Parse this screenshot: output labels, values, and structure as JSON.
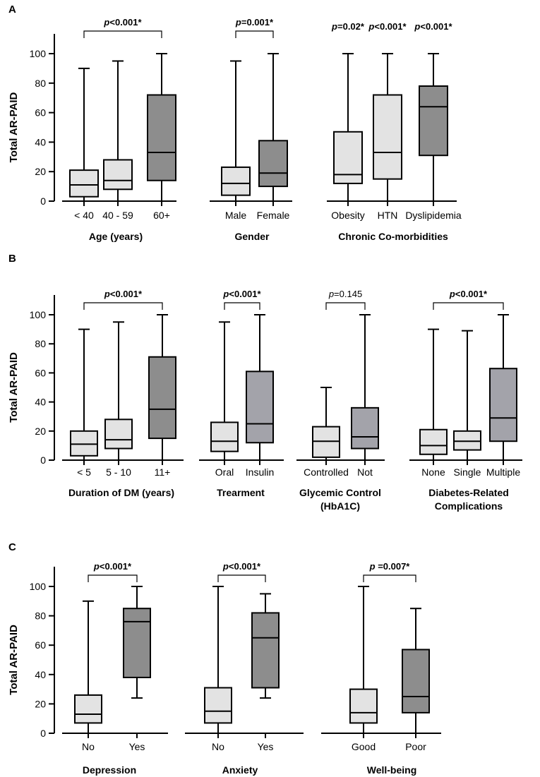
{
  "chart_data": [
    {
      "type": "box",
      "panel": "A",
      "ylabel": "Total AR-PAID",
      "ylim": [
        0,
        100
      ],
      "yticks": [
        "0",
        "20",
        "40",
        "60",
        "80",
        "100"
      ],
      "groups": [
        {
          "label": "Age (years)",
          "pvalue": {
            "prefix": "p",
            "text": "<0.001*",
            "bold": true,
            "bracket": true,
            "from": 0,
            "to": 2
          }
        },
        {
          "label": "Gender",
          "pvalue": {
            "prefix": "p",
            "text": "=0.001*",
            "bold": true,
            "bracket": true,
            "from": 3,
            "to": 4
          }
        },
        {
          "label": "Chronic Co-morbidities"
        }
      ],
      "boxes": [
        {
          "label": "< 40",
          "group": 0,
          "min": 0,
          "q1": 3,
          "median": 11,
          "q3": 21,
          "max": 90,
          "fill": "light"
        },
        {
          "label": "40 - 59",
          "group": 0,
          "min": 0,
          "q1": 8,
          "median": 14,
          "q3": 28,
          "max": 95,
          "fill": "light"
        },
        {
          "label": "60+",
          "group": 0,
          "min": 0,
          "q1": 14,
          "median": 33,
          "q3": 72,
          "max": 100,
          "fill": "dark"
        },
        {
          "label": "Male",
          "group": 1,
          "min": 0,
          "q1": 4,
          "median": 12,
          "q3": 23,
          "max": 95,
          "fill": "light"
        },
        {
          "label": "Female",
          "group": 1,
          "min": 0,
          "q1": 10,
          "median": 19,
          "q3": 41,
          "max": 100,
          "fill": "dark"
        },
        {
          "label": "Obesity",
          "group": 2,
          "min": 0,
          "q1": 12,
          "median": 18,
          "q3": 47,
          "max": 100,
          "fill": "light",
          "pvalue": {
            "prefix": "p",
            "text": "=0.02*",
            "bold": true
          }
        },
        {
          "label": "HTN",
          "group": 2,
          "min": 0,
          "q1": 15,
          "median": 33,
          "q3": 72,
          "max": 100,
          "fill": "light",
          "pvalue": {
            "prefix": "p",
            "text": "<0.001*",
            "bold": true
          }
        },
        {
          "label": "Dyslipidemia",
          "group": 2,
          "min": 0,
          "q1": 31,
          "median": 64,
          "q3": 78,
          "max": 100,
          "fill": "dark",
          "pvalue": {
            "prefix": "p",
            "text": "<0.001*",
            "bold": true
          }
        }
      ]
    },
    {
      "type": "box",
      "panel": "B",
      "ylabel": "Total AR-PAID",
      "ylim": [
        0,
        100
      ],
      "yticks": [
        "0",
        "20",
        "40",
        "60",
        "80",
        "100"
      ],
      "groups": [
        {
          "label": "Duration of DM (years)",
          "pvalue": {
            "prefix": "p",
            "text": "<0.001*",
            "bold": true,
            "bracket": true,
            "from": 0,
            "to": 2
          }
        },
        {
          "label": "Trearment",
          "pvalue": {
            "prefix": "p",
            "text": "<0.001*",
            "bold": true,
            "bracket": true,
            "from": 3,
            "to": 4
          }
        },
        {
          "label": "Glycemic Control",
          "label2": "(HbA1C)",
          "pvalue": {
            "prefix": "p",
            "text": "=0.145",
            "bold": false,
            "bracket": true,
            "from": 5,
            "to": 6
          }
        },
        {
          "label": "Diabetes-Related",
          "label2": "Complications",
          "pvalue": {
            "prefix": "p",
            "text": "<0.001*",
            "bold": true,
            "bracket": true,
            "from": 7,
            "to": 9
          }
        }
      ],
      "boxes": [
        {
          "label": "< 5",
          "group": 0,
          "min": 0,
          "q1": 3,
          "median": 11,
          "q3": 20,
          "max": 90,
          "fill": "light"
        },
        {
          "label": "5 - 10",
          "group": 0,
          "min": 0,
          "q1": 8,
          "median": 14,
          "q3": 28,
          "max": 95,
          "fill": "light"
        },
        {
          "label": "11+",
          "group": 0,
          "min": 0,
          "q1": 15,
          "median": 35,
          "q3": 71,
          "max": 100,
          "fill": "dark"
        },
        {
          "label": "Oral",
          "group": 1,
          "min": 0,
          "q1": 6,
          "median": 13,
          "q3": 26,
          "max": 95,
          "fill": "light"
        },
        {
          "label": "Insulin",
          "group": 1,
          "min": 0,
          "q1": 12,
          "median": 25,
          "q3": 61,
          "max": 100,
          "fill": "mid"
        },
        {
          "label": "Controlled",
          "group": 2,
          "min": 0,
          "q1": 2,
          "median": 13,
          "q3": 23,
          "max": 50,
          "fill": "light"
        },
        {
          "label": "Not",
          "group": 2,
          "min": 0,
          "q1": 8,
          "median": 16,
          "q3": 36,
          "max": 100,
          "fill": "mid"
        },
        {
          "label": "None",
          "group": 3,
          "min": 0,
          "q1": 4,
          "median": 10,
          "q3": 21,
          "max": 90,
          "fill": "light"
        },
        {
          "label": "Single",
          "group": 3,
          "min": 0,
          "q1": 7,
          "median": 13,
          "q3": 20,
          "max": 89,
          "fill": "light"
        },
        {
          "label": "Multiple",
          "group": 3,
          "min": 0,
          "q1": 13,
          "median": 29,
          "q3": 63,
          "max": 100,
          "fill": "mid"
        }
      ]
    },
    {
      "type": "box",
      "panel": "C",
      "ylabel": "Total AR-PAID",
      "ylim": [
        0,
        100
      ],
      "yticks": [
        "0",
        "20",
        "40",
        "60",
        "80",
        "100"
      ],
      "groups": [
        {
          "label": "Depression",
          "pvalue": {
            "prefix": "p",
            "text": "<0.001*",
            "bold": true,
            "bracket": true,
            "from": 0,
            "to": 1
          }
        },
        {
          "label": "Anxiety",
          "pvalue": {
            "prefix": "p",
            "text": "<0.001*",
            "bold": true,
            "bracket": true,
            "from": 2,
            "to": 3
          }
        },
        {
          "label": "Well-being",
          "pvalue": {
            "prefix": "p ",
            "text": "=0.007*",
            "bold": true,
            "bracket": true,
            "from": 4,
            "to": 5
          }
        }
      ],
      "boxes": [
        {
          "label": "No",
          "group": 0,
          "min": 0,
          "q1": 7,
          "median": 13,
          "q3": 26,
          "max": 90,
          "fill": "light"
        },
        {
          "label": "Yes",
          "group": 0,
          "min": 24,
          "q1": 38,
          "median": 76,
          "q3": 85,
          "max": 100,
          "fill": "dark"
        },
        {
          "label": "No",
          "group": 1,
          "min": 0,
          "q1": 7,
          "median": 15,
          "q3": 31,
          "max": 100,
          "fill": "light"
        },
        {
          "label": "Yes",
          "group": 1,
          "min": 24,
          "q1": 31,
          "median": 65,
          "q3": 82,
          "max": 95,
          "fill": "dark"
        },
        {
          "label": "Good",
          "group": 2,
          "min": 0,
          "q1": 7,
          "median": 14,
          "q3": 30,
          "max": 100,
          "fill": "light"
        },
        {
          "label": "Poor",
          "group": 2,
          "min": 0,
          "q1": 14,
          "median": 25,
          "q3": 57,
          "max": 85,
          "fill": "dark"
        }
      ]
    }
  ],
  "colors": {
    "light": "#e3e3e3",
    "mid": "#a3a3aa",
    "dark": "#8d8d8d",
    "stroke": "#000000"
  }
}
